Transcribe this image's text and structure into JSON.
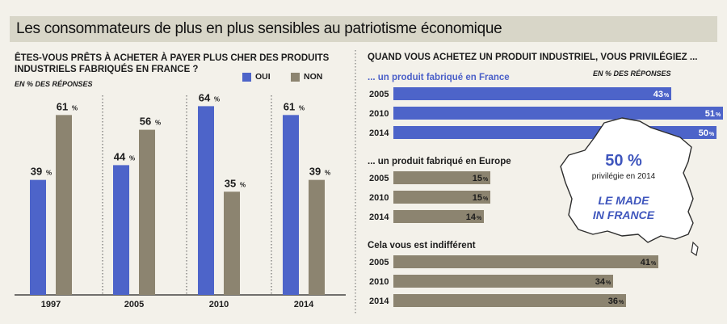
{
  "title": "Les consommateurs de plus en plus sensibles au patriotisme économique",
  "colors": {
    "blue": "#4d64c9",
    "tan": "#8c8470",
    "banner": "#d8d6c8"
  },
  "left_panel": {
    "question": "ÊTES-VOUS PRÊTS À ACHETER À PAYER PLUS CHER DES PRODUITS INDUSTRIELS FABRIQUÉS EN FRANCE ?",
    "unit": "EN % DES RÉPONSES",
    "legend": {
      "oui": "OUI",
      "non": "NON"
    }
  },
  "right_panel": {
    "question": "QUAND VOUS ACHETEZ UN PRODUIT INDUSTRIEL, VOUS PRIVILÉGIEZ ...",
    "unit": "EN % DES RÉPONSES",
    "sections": [
      "... un produit fabriqué en France",
      "... un produit fabriqué en Europe",
      "Cela vous est indifférent"
    ]
  },
  "callout": {
    "value": "50 %",
    "sub": "privilégie en 2014",
    "line1": "LE MADE",
    "line2": "IN FRANCE"
  },
  "chart_data": [
    {
      "type": "bar",
      "title": "ÊTES-VOUS PRÊTS À ACHETER À PAYER PLUS CHER DES PRODUITS INDUSTRIELS FABRIQUÉS EN FRANCE ?",
      "categories": [
        "1997",
        "2005",
        "2010",
        "2014"
      ],
      "series": [
        {
          "name": "OUI",
          "values": [
            39,
            44,
            64,
            61
          ]
        },
        {
          "name": "NON",
          "values": [
            61,
            56,
            35,
            39
          ]
        }
      ],
      "unit_label": "%",
      "ylim": [
        0,
        70
      ],
      "grid": false,
      "legend": "top-right"
    },
    {
      "type": "bar",
      "orientation": "horizontal",
      "title": "QUAND VOUS ACHETEZ UN PRODUIT INDUSTRIEL, VOUS PRIVILÉGIEZ ...",
      "categories": [
        "2005",
        "2010",
        "2014"
      ],
      "groups": [
        {
          "name": "... un produit fabriqué en France",
          "values": [
            43,
            51,
            50
          ]
        },
        {
          "name": "... un produit fabriqué en Europe",
          "values": [
            15,
            15,
            14
          ]
        },
        {
          "name": "Cela vous est indifférent",
          "values": [
            41,
            34,
            36
          ]
        }
      ],
      "unit_label": "%",
      "xlim": [
        0,
        51
      ],
      "grid": false
    }
  ]
}
